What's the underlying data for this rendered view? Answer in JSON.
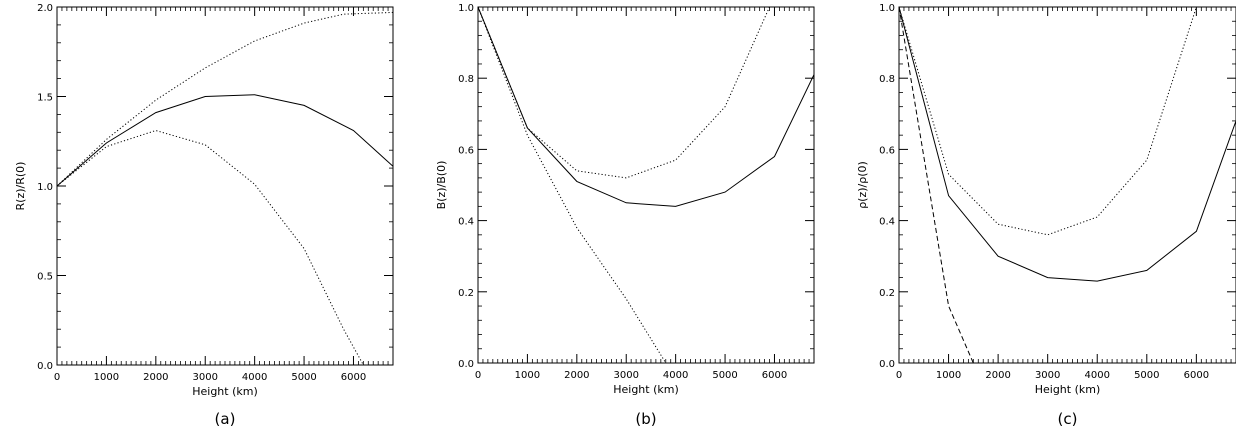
{
  "chart_data": [
    {
      "type": "line",
      "caption": "(a)",
      "xlabel": "Height (km)",
      "ylabel": "R(z)/R(0)",
      "xlim": [
        0,
        6800
      ],
      "ylim": [
        0,
        2.0
      ],
      "xticks": [
        0,
        1000,
        2000,
        3000,
        4000,
        5000,
        6000
      ],
      "xtick_labels": [
        "0",
        "1000",
        "2000",
        "3000",
        "4000",
        "5000",
        "6000"
      ],
      "yticks": [
        0,
        0.5,
        1.0,
        1.5,
        2.0
      ],
      "ytick_labels": [
        "0.0",
        "0.5",
        "1.0",
        "1.5",
        "2.0"
      ],
      "grid": false,
      "series": [
        {
          "style": "solid",
          "x": [
            0,
            1000,
            2000,
            3000,
            4000,
            5000,
            6000,
            6800
          ],
          "y": [
            1.0,
            1.24,
            1.41,
            1.5,
            1.51,
            1.45,
            1.31,
            1.11
          ]
        },
        {
          "style": "dotted",
          "x": [
            0,
            1000,
            2000,
            3000,
            4000,
            5000,
            5800,
            6800
          ],
          "y": [
            1.0,
            1.26,
            1.48,
            1.66,
            1.81,
            1.91,
            1.96,
            1.97
          ]
        },
        {
          "style": "dotted",
          "x": [
            0,
            1000,
            2000,
            3000,
            4000,
            5000,
            5800,
            6200
          ],
          "y": [
            1.0,
            1.22,
            1.31,
            1.23,
            1.01,
            0.65,
            0.2,
            0.0
          ]
        }
      ]
    },
    {
      "type": "line",
      "caption": "(b)",
      "xlabel": "Height (km)",
      "ylabel": "B(z)/B(0)",
      "xlim": [
        0,
        6800
      ],
      "ylim": [
        0,
        1.0
      ],
      "xticks": [
        0,
        1000,
        2000,
        3000,
        4000,
        5000,
        6000
      ],
      "xtick_labels": [
        "0",
        "1000",
        "2000",
        "3000",
        "4000",
        "5000",
        "6000"
      ],
      "yticks": [
        0,
        0.2,
        0.4,
        0.6,
        0.8,
        1.0
      ],
      "ytick_labels": [
        "0.0",
        "0.2",
        "0.4",
        "0.6",
        "0.8",
        "1.0"
      ],
      "grid": false,
      "series": [
        {
          "style": "solid",
          "x": [
            0,
            1000,
            2000,
            3000,
            4000,
            5000,
            6000,
            6800
          ],
          "y": [
            1.0,
            0.66,
            0.51,
            0.45,
            0.44,
            0.48,
            0.58,
            0.81
          ]
        },
        {
          "style": "dotted",
          "x": [
            0,
            1000,
            2000,
            3000,
            4000,
            5000,
            5900
          ],
          "y": [
            1.0,
            0.66,
            0.54,
            0.52,
            0.57,
            0.72,
            1.0
          ]
        },
        {
          "style": "dotted",
          "x": [
            0,
            1000,
            2000,
            3000,
            3800
          ],
          "y": [
            1.0,
            0.64,
            0.38,
            0.18,
            0.0
          ]
        }
      ]
    },
    {
      "type": "line",
      "caption": "(c)",
      "xlabel": "Height (km)",
      "ylabel": "ρ(z)/ρ(0)",
      "xlim": [
        0,
        6800
      ],
      "ylim": [
        0,
        1.0
      ],
      "xticks": [
        0,
        1000,
        2000,
        3000,
        4000,
        5000,
        6000
      ],
      "xtick_labels": [
        "0",
        "1000",
        "2000",
        "3000",
        "4000",
        "5000",
        "6000"
      ],
      "yticks": [
        0,
        0.2,
        0.4,
        0.6,
        0.8,
        1.0
      ],
      "ytick_labels": [
        "0.0",
        "0.2",
        "0.4",
        "0.6",
        "0.8",
        "1.0"
      ],
      "grid": false,
      "series": [
        {
          "style": "solid",
          "x": [
            0,
            1000,
            2000,
            3000,
            4000,
            5000,
            6000,
            6800
          ],
          "y": [
            1.0,
            0.47,
            0.3,
            0.24,
            0.23,
            0.26,
            0.37,
            0.68
          ]
        },
        {
          "style": "dotted",
          "x": [
            0,
            1000,
            2000,
            3000,
            4000,
            5000,
            6000
          ],
          "y": [
            1.0,
            0.53,
            0.39,
            0.36,
            0.41,
            0.57,
            1.0
          ]
        },
        {
          "style": "dashed",
          "x": [
            0,
            1000,
            1500
          ],
          "y": [
            1.0,
            0.16,
            0.0
          ]
        }
      ]
    }
  ]
}
